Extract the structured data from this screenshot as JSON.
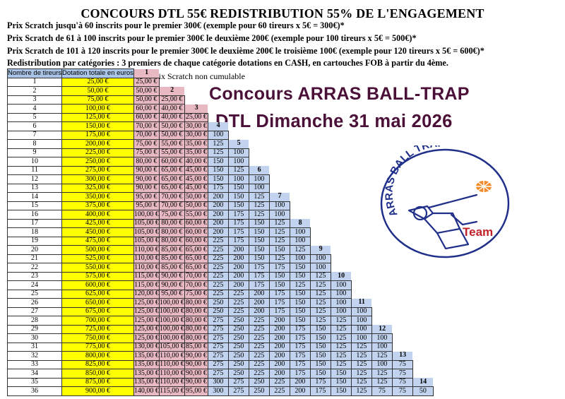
{
  "title": "CONCOURS DTL 55€ REDISTRIBUTION 55% DE L'ENGAGEMENT",
  "info_lines": [
    "Prix Scratch jusqu'à 60 inscrits pour le premier 300€ (exemple pour 60 tireurs x 5€ = 300€)*",
    "Prix Scratch de 61 à 100 inscrits pour le premier 300€ le deuxième 200€ (exemple pour 100 tireurs x 5€ = 500€)*",
    "Prix Scratch de 101 à 120 inscrits pour le premier 300€ le deuxième 200€ le troisième 100€ (exemple pour 120 tireurs x 5€ = 600€)*",
    "Redistribution par catégories : 3 premiers de chaque catégorie dotations en CA$H, en cartouches FOB à partir du 4ème."
  ],
  "note": "*Prix Scratch non cumulable",
  "headline": {
    "line1": "Concours ARRAS BALL-TRAP",
    "line2": "DTL Dimanche 31 mai 2026"
  },
  "logo": {
    "text": "ARRAS BALL TRAP",
    "team": "Team"
  },
  "table": {
    "header": {
      "nombre": "Nombre de tireurs",
      "dotation": "Dotation totale en euros"
    },
    "rows": [
      {
        "n": "1",
        "dotation": "25,00 €",
        "prizes": [
          "25,00 €"
        ]
      },
      {
        "n": "2",
        "dotation": "50,00 €",
        "prizes": [
          "50,00 €"
        ]
      },
      {
        "n": "3",
        "dotation": "75,00 €",
        "prizes": [
          "50,00 €",
          "25,00 €"
        ]
      },
      {
        "n": "4",
        "dotation": "100,00 €",
        "prizes": [
          "60,00 €",
          "40,00 €"
        ]
      },
      {
        "n": "5",
        "dotation": "125,00 €",
        "prizes": [
          "60,00 €",
          "40,00 €",
          "25,00 €"
        ]
      },
      {
        "n": "6",
        "dotation": "150,00 €",
        "prizes": [
          "70,00 €",
          "50,00 €",
          "30,00 €"
        ]
      },
      {
        "n": "7",
        "dotation": "175,00 €",
        "prizes": [
          "70,00 €",
          "50,00 €",
          "30,00 €",
          "100"
        ]
      },
      {
        "n": "8",
        "dotation": "200,00 €",
        "prizes": [
          "75,00 €",
          "55,00 €",
          "35,00 €",
          "125"
        ]
      },
      {
        "n": "9",
        "dotation": "225,00 €",
        "prizes": [
          "75,00 €",
          "55,00 €",
          "35,00 €",
          "125",
          "100"
        ]
      },
      {
        "n": "10",
        "dotation": "250,00 €",
        "prizes": [
          "80,00 €",
          "60,00 €",
          "40,00 €",
          "150",
          "100"
        ]
      },
      {
        "n": "11",
        "dotation": "275,00 €",
        "prizes": [
          "90,00 €",
          "65,00 €",
          "45,00 €",
          "150",
          "125"
        ]
      },
      {
        "n": "12",
        "dotation": "300,00 €",
        "prizes": [
          "90,00 €",
          "65,00 €",
          "45,00 €",
          "150",
          "100",
          "100"
        ]
      },
      {
        "n": "13",
        "dotation": "325,00 €",
        "prizes": [
          "90,00 €",
          "65,00 €",
          "45,00 €",
          "175",
          "150",
          "100"
        ]
      },
      {
        "n": "14",
        "dotation": "350,00 €",
        "prizes": [
          "95,00 €",
          "70,00 €",
          "50,00 €",
          "200",
          "150",
          "125"
        ]
      },
      {
        "n": "15",
        "dotation": "375,00 €",
        "prizes": [
          "95,00 €",
          "70,00 €",
          "50,00 €",
          "200",
          "150",
          "125",
          "100"
        ]
      },
      {
        "n": "16",
        "dotation": "400,00 €",
        "prizes": [
          "100,00 €",
          "75,00 €",
          "55,00 €",
          "200",
          "175",
          "125",
          "100"
        ]
      },
      {
        "n": "17",
        "dotation": "425,00 €",
        "prizes": [
          "105,00 €",
          "80,00 €",
          "60,00 €",
          "200",
          "175",
          "150",
          "125"
        ]
      },
      {
        "n": "18",
        "dotation": "450,00 €",
        "prizes": [
          "105,00 €",
          "80,00 €",
          "60,00 €",
          "200",
          "175",
          "150",
          "125",
          "100"
        ]
      },
      {
        "n": "19",
        "dotation": "475,00 €",
        "prizes": [
          "105,00 €",
          "80,00 €",
          "60,00 €",
          "225",
          "175",
          "150",
          "125",
          "100"
        ]
      },
      {
        "n": "20",
        "dotation": "500,00 €",
        "prizes": [
          "110,00 €",
          "85,00 €",
          "65,00 €",
          "225",
          "200",
          "150",
          "150",
          "125"
        ]
      },
      {
        "n": "21",
        "dotation": "525,00 €",
        "prizes": [
          "110,00 €",
          "85,00 €",
          "65,00 €",
          "225",
          "200",
          "150",
          "125",
          "100",
          "100"
        ]
      },
      {
        "n": "22",
        "dotation": "550,00 €",
        "prizes": [
          "110,00 €",
          "85,00 €",
          "65,00 €",
          "225",
          "200",
          "175",
          "175",
          "150",
          "100"
        ]
      },
      {
        "n": "23",
        "dotation": "575,00 €",
        "prizes": [
          "115,00 €",
          "90,00 €",
          "70,00 €",
          "225",
          "200",
          "175",
          "150",
          "150",
          "125"
        ]
      },
      {
        "n": "24",
        "dotation": "600,00 €",
        "prizes": [
          "115,00 €",
          "90,00 €",
          "70,00 €",
          "225",
          "200",
          "175",
          "150",
          "125",
          "125",
          "100"
        ]
      },
      {
        "n": "25",
        "dotation": "625,00 €",
        "prizes": [
          "120,00 €",
          "95,00 €",
          "75,00 €",
          "225",
          "225",
          "200",
          "175",
          "150",
          "125",
          "100"
        ]
      },
      {
        "n": "26",
        "dotation": "650,00 €",
        "prizes": [
          "125,00 €",
          "100,00 €",
          "80,00 €",
          "250",
          "225",
          "200",
          "175",
          "150",
          "125",
          "100"
        ]
      },
      {
        "n": "27",
        "dotation": "675,00 €",
        "prizes": [
          "125,00 €",
          "100,00 €",
          "80,00 €",
          "250",
          "225",
          "200",
          "175",
          "150",
          "125",
          "100",
          "100"
        ]
      },
      {
        "n": "28",
        "dotation": "700,00 €",
        "prizes": [
          "125,00 €",
          "100,00 €",
          "80,00 €",
          "275",
          "250",
          "225",
          "200",
          "150",
          "125",
          "125",
          "100"
        ]
      },
      {
        "n": "29",
        "dotation": "725,00 €",
        "prizes": [
          "125,00 €",
          "100,00 €",
          "80,00 €",
          "275",
          "250",
          "225",
          "200",
          "175",
          "150",
          "125",
          "100"
        ]
      },
      {
        "n": "30",
        "dotation": "750,00 €",
        "prizes": [
          "125,00 €",
          "100,00 €",
          "80,00 €",
          "275",
          "250",
          "225",
          "200",
          "175",
          "150",
          "125",
          "100",
          "100"
        ]
      },
      {
        "n": "31",
        "dotation": "775,00 €",
        "prizes": [
          "130,00 €",
          "105,00 €",
          "85,00 €",
          "275",
          "250",
          "225",
          "200",
          "175",
          "150",
          "125",
          "125",
          "100"
        ]
      },
      {
        "n": "32",
        "dotation": "800,00 €",
        "prizes": [
          "135,00 €",
          "110,00 €",
          "90,00 €",
          "275",
          "250",
          "225",
          "200",
          "175",
          "150",
          "125",
          "125",
          "125"
        ]
      },
      {
        "n": "33",
        "dotation": "825,00 €",
        "prizes": [
          "135,00 €",
          "110,00 €",
          "90,00 €",
          "275",
          "250",
          "225",
          "200",
          "175",
          "150",
          "125",
          "125",
          "100",
          "75"
        ]
      },
      {
        "n": "34",
        "dotation": "850,00 €",
        "prizes": [
          "135,00 €",
          "110,00 €",
          "90,00 €",
          "275",
          "250",
          "225",
          "200",
          "175",
          "150",
          "150",
          "125",
          "125",
          "75"
        ]
      },
      {
        "n": "35",
        "dotation": "875,00 €",
        "prizes": [
          "135,00 €",
          "110,00 €",
          "90,00 €",
          "300",
          "275",
          "250",
          "225",
          "200",
          "175",
          "150",
          "125",
          "125",
          "75"
        ]
      },
      {
        "n": "36",
        "dotation": "900,00 €",
        "prizes": [
          "140,00 €",
          "115,00 €",
          "95,00 €",
          "300",
          "275",
          "250",
          "225",
          "200",
          "175",
          "150",
          "125",
          "75",
          "75",
          "50"
        ]
      }
    ]
  },
  "colors": {
    "headline": "#4b1038",
    "dotation": "#ffff00",
    "pink": "#e8b9c3",
    "blue": "#c1d3ee",
    "header": "#a9c4e6",
    "logo_blue": "#1f2f8a",
    "logo_red": "#c0222a",
    "logo_orange": "#f08c2a"
  }
}
